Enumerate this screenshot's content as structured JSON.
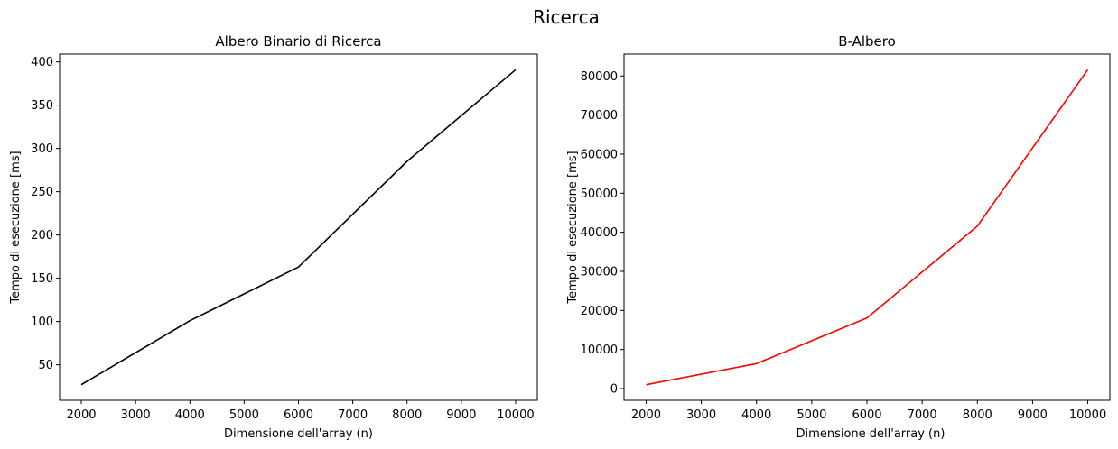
{
  "figure": {
    "suptitle": "Ricerca"
  },
  "chart_data": [
    {
      "type": "line",
      "title": "Albero Binario di Ricerca",
      "xlabel": "Dimensione dell'array (n)",
      "ylabel": "Tempo di esecuzione [ms]",
      "x": [
        2000,
        4000,
        6000,
        8000,
        10000
      ],
      "series": [
        {
          "values": [
            27,
            101,
            163,
            285,
            391
          ],
          "color": "#000000"
        }
      ],
      "xticks": [
        2000,
        3000,
        4000,
        5000,
        6000,
        7000,
        8000,
        9000,
        10000
      ],
      "yticks": [
        50,
        100,
        150,
        200,
        250,
        300,
        350,
        400
      ],
      "xlim": [
        1600,
        10400
      ],
      "ylim": [
        9,
        409
      ],
      "grid": false,
      "legend": "none"
    },
    {
      "type": "line",
      "title": "B-Albero",
      "xlabel": "Dimensione dell'array (n)",
      "ylabel": "Tempo di esecuzione [ms]",
      "x": [
        2000,
        4000,
        6000,
        8000,
        10000
      ],
      "series": [
        {
          "values": [
            1000,
            6400,
            18100,
            41600,
            81600
          ],
          "color": "#ff0000"
        }
      ],
      "xticks": [
        2000,
        3000,
        4000,
        5000,
        6000,
        7000,
        8000,
        9000,
        10000
      ],
      "yticks": [
        0,
        10000,
        20000,
        30000,
        40000,
        50000,
        60000,
        70000,
        80000
      ],
      "xlim": [
        1600,
        10400
      ],
      "ylim": [
        -3000,
        85600
      ],
      "grid": false,
      "legend": "none"
    }
  ]
}
